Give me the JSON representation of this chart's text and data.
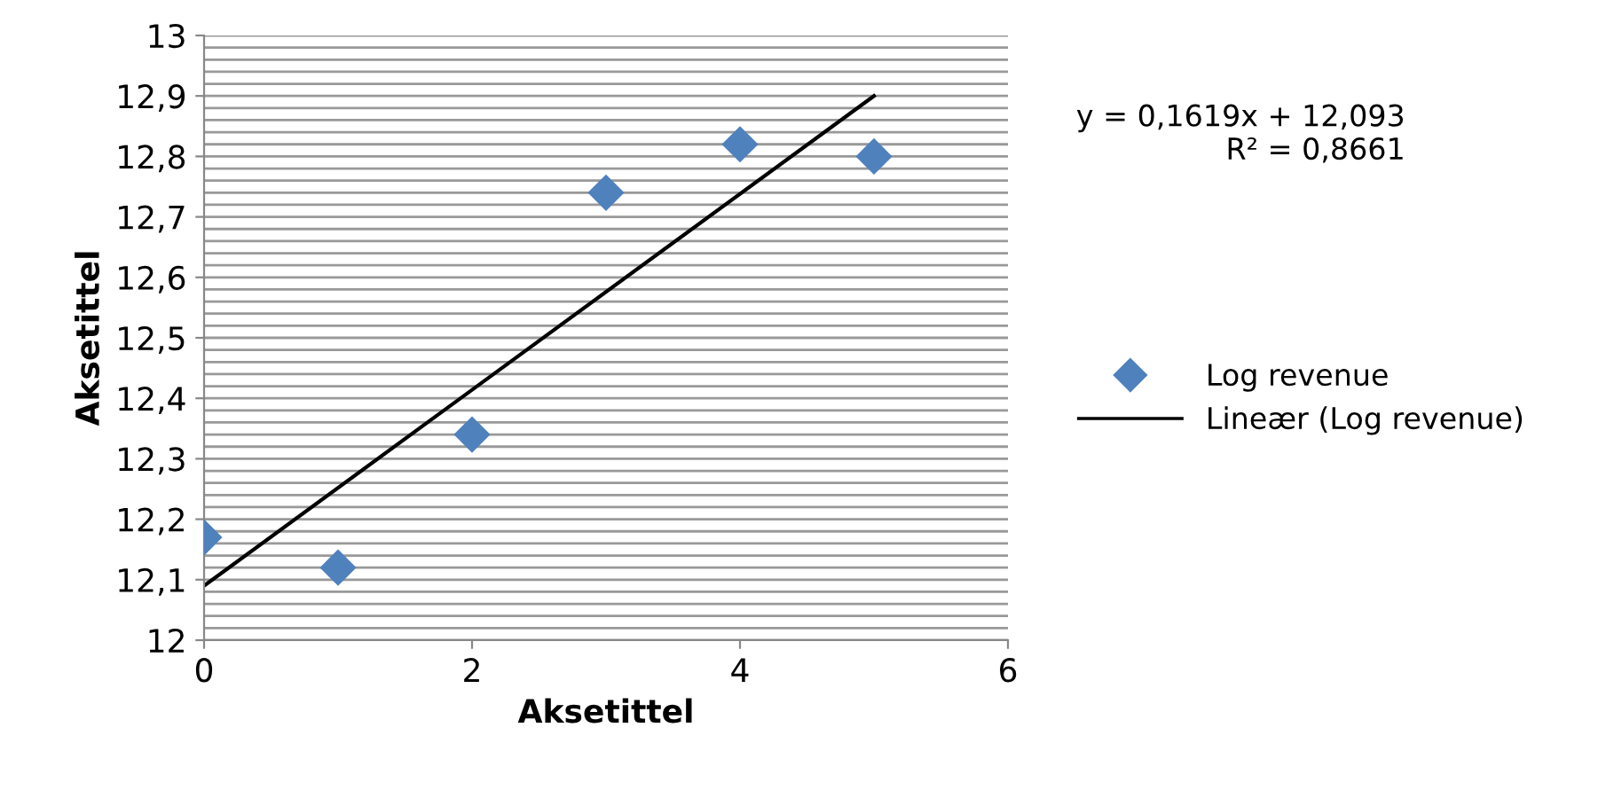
{
  "chart_data": {
    "type": "scatter",
    "xlabel": "Aksetittel",
    "ylabel": "Aksetittel",
    "annotations": [
      "y = 0,1619x + 12,093\nR² = 0,8661"
    ],
    "series": [
      {
        "name": "Log revenue",
        "color": "#4f81bd",
        "marker": "diamond",
        "x": [
          0,
          1,
          2,
          3,
          4,
          5
        ],
        "values": [
          12.17,
          12.12,
          12.34,
          12.74,
          12.82,
          12.8
        ]
      },
      {
        "name": "Lineær (Log revenue)",
        "type": "line",
        "color": "#000000",
        "line_style": "solid",
        "marker": "none",
        "x": [
          0,
          5
        ],
        "values": [
          12.09,
          12.9
        ]
      }
    ],
    "xlim": [
      0,
      6
    ],
    "xticks": [
      0,
      2,
      4,
      6
    ],
    "ylim": [
      12,
      13
    ],
    "yticks": [
      {
        "value": 12,
        "label": "12"
      },
      {
        "value": 12.02,
        "label": null
      },
      {
        "value": 12.04,
        "label": null
      },
      {
        "value": 12.06,
        "label": null
      },
      {
        "value": 12.08,
        "label": null
      },
      {
        "value": 12.1,
        "label": "12,1"
      },
      {
        "value": 12.12,
        "label": null
      },
      {
        "value": 12.14,
        "label": null
      },
      {
        "value": 12.16,
        "label": null
      },
      {
        "value": 12.18,
        "label": null
      },
      {
        "value": 12.2,
        "label": "12,2"
      },
      {
        "value": 12.22,
        "label": null
      },
      {
        "value": 12.24,
        "label": null
      },
      {
        "value": 12.26,
        "label": null
      },
      {
        "value": 12.28,
        "label": null
      },
      {
        "value": 12.3,
        "label": "12,3"
      },
      {
        "value": 12.32,
        "label": null
      },
      {
        "value": 12.34,
        "label": null
      },
      {
        "value": 12.36,
        "label": null
      },
      {
        "value": 12.38,
        "label": null
      },
      {
        "value": 12.4,
        "label": "12,4"
      },
      {
        "value": 12.42,
        "label": null
      },
      {
        "value": 12.44,
        "label": null
      },
      {
        "value": 12.46,
        "label": null
      },
      {
        "value": 12.48,
        "label": null
      },
      {
        "value": 12.5,
        "label": "12,5"
      },
      {
        "value": 12.52,
        "label": null
      },
      {
        "value": 12.54,
        "label": null
      },
      {
        "value": 12.56,
        "label": null
      },
      {
        "value": 12.58,
        "label": null
      },
      {
        "value": 12.6,
        "label": "12,6"
      },
      {
        "value": 12.62,
        "label": null
      },
      {
        "value": 12.64,
        "label": null
      },
      {
        "value": 12.66,
        "label": null
      },
      {
        "value": 12.68,
        "label": null
      },
      {
        "value": 12.7,
        "label": "12,7"
      },
      {
        "value": 12.72,
        "label": null
      },
      {
        "value": 12.74,
        "label": null
      },
      {
        "value": 12.76,
        "label": null
      },
      {
        "value": 12.78,
        "label": null
      },
      {
        "value": 12.8,
        "label": "12,8"
      },
      {
        "value": 12.82,
        "label": null
      },
      {
        "value": 12.84,
        "label": null
      },
      {
        "value": 12.86,
        "label": null
      },
      {
        "value": 12.88,
        "label": null
      },
      {
        "value": 12.9,
        "label": "12,9"
      },
      {
        "value": 12.92,
        "label": null
      },
      {
        "value": 12.94,
        "label": null
      },
      {
        "value": 12.96,
        "label": null
      },
      {
        "value": 12.98,
        "label": null
      },
      {
        "value": 13,
        "label": "13"
      }
    ],
    "grid": "y",
    "legend": "right"
  }
}
